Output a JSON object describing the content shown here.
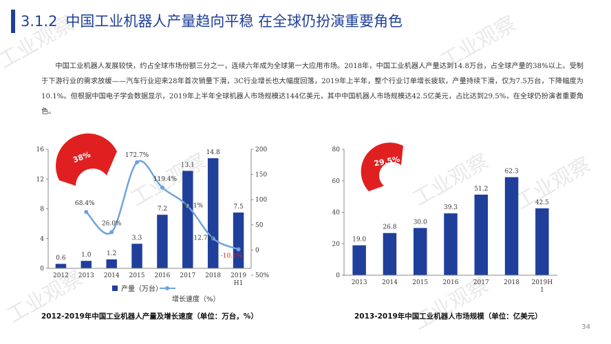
{
  "header": {
    "section_number": "3.1.2",
    "title": "中国工业机器人产量趋向平稳 在全球仍扮演重要角色"
  },
  "paragraph": "中国工业机器人发展较快，约占全球市场份额三分之一，连续六年成为全球第一大应用市场。2018年，中国工业机器人产量达到14.8万台，占全球产量的38%以上。受制于下游行业的需求放缓——汽车行业迎来28年首次销量下滑，3C行业增长也大幅度回落，2019年上半年，整个行业订单增长疲软，产量持续下滑，仅为7.5万台，下降幅度为10.1%。但根据中国电子学会数据显示，2019年上半年全球机器人市场规模达144亿美元，其中中国机器人市场规模达42.5亿美元，占比达到29.5%，在全球仍扮演者重要角色。",
  "watermark": "工业观察",
  "page_number": "34",
  "chart_data": [
    {
      "type": "bar",
      "title": "2012-2019年中国工业机器人产量及增长速度（单位：万台，%）",
      "categories": [
        "2012",
        "2013",
        "2014",
        "2015",
        "2016",
        "2017",
        "2018",
        "2019H1"
      ],
      "series": [
        {
          "name": "产量（万台）",
          "type": "bar",
          "axis": "left",
          "color": "#1f3f9b",
          "values": [
            0.6,
            1.0,
            1.2,
            3.3,
            7.2,
            13.1,
            14.8,
            7.5
          ],
          "labels": [
            "0.6",
            "1.0",
            "1.2",
            "3.3",
            "7.2",
            "13.1",
            "14.8",
            "7.5"
          ]
        },
        {
          "name": "增长速度（%）",
          "type": "line",
          "axis": "right",
          "color": "#6fa3dd",
          "values": [
            null,
            68.4,
            26.0,
            172.7,
            119.4,
            81.1,
            12.7,
            -10.1
          ],
          "labels": [
            "",
            "68.4%",
            "26.0%",
            "172.7%",
            "119.4%",
            "81.1%",
            "12.7%",
            "-10.1%"
          ]
        }
      ],
      "ylim_left": [
        0,
        16
      ],
      "yticks_left": [
        "0",
        "4",
        "8",
        "12",
        "16"
      ],
      "ylim_right": [
        -50,
        200
      ],
      "yticks_right": [
        "50%",
        "0",
        "50",
        "100",
        "150",
        "200"
      ],
      "badge": "38%",
      "badge_color": "#e02020"
    },
    {
      "type": "bar",
      "title": "2013-2019年中国工业机器人市场规模（单位：亿美元）",
      "categories": [
        "2013",
        "2014",
        "2015",
        "2016",
        "2017",
        "2018",
        "2019H1"
      ],
      "category_labels": [
        [
          "2013"
        ],
        [
          "2014"
        ],
        [
          "2015"
        ],
        [
          "2016"
        ],
        [
          "2017"
        ],
        [
          "2018"
        ],
        [
          "2019H",
          "1"
        ]
      ],
      "series": [
        {
          "color": "#1f3f9b",
          "values": [
            19.0,
            26.8,
            30.0,
            39.3,
            51.2,
            62.3,
            42.5
          ],
          "labels": [
            "19.0",
            "26.8",
            "30.0",
            "39.3",
            "51.2",
            "62.3",
            "42.5"
          ]
        }
      ],
      "ylim": [
        0,
        80
      ],
      "yticks": [
        "0",
        "20",
        "40",
        "60",
        "80"
      ],
      "badge": "29.5%",
      "badge_color": "#e02020"
    }
  ]
}
